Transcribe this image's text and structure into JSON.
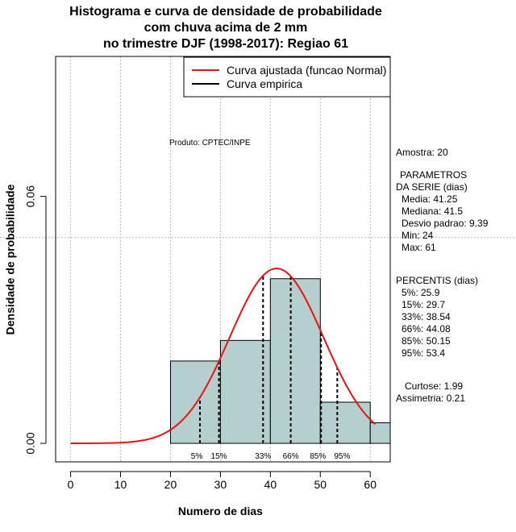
{
  "chart_data": {
    "type": "histogram",
    "title_lines": [
      "Histograma e curva de densidade de probabilidade",
      "com chuva acima de 2 mm",
      "no trimestre DJF (1998-2017): Regiao 61"
    ],
    "xlabel": "Numero de dias",
    "ylabel": "Densidade de probabilidade",
    "xlim": [
      -3,
      64
    ],
    "ylim": [
      -0.0045,
      0.094
    ],
    "x_ticks": [
      0,
      10,
      20,
      30,
      40,
      50,
      60
    ],
    "y_ticks": [
      0.0,
      0.06
    ],
    "y_tick_labels": [
      "0.00",
      "0.06"
    ],
    "grid_x": [
      0,
      10,
      20,
      30,
      40,
      50,
      60
    ],
    "grid_y": 0.05,
    "bins": [
      {
        "from": 20,
        "to": 30,
        "density": 0.02
      },
      {
        "from": 30,
        "to": 40,
        "density": 0.025
      },
      {
        "from": 40,
        "to": 50,
        "density": 0.04
      },
      {
        "from": 50,
        "to": 60,
        "density": 0.01
      },
      {
        "from": 60,
        "to": 64,
        "density": 0.005
      }
    ],
    "normal_fit": {
      "mean": 41.25,
      "sd": 9.39,
      "x_from": 0,
      "x_to": 61
    },
    "percentile_lines": [
      {
        "label": "5%",
        "x": 25.9
      },
      {
        "label": "15%",
        "x": 29.7
      },
      {
        "label": "33%",
        "x": 38.54
      },
      {
        "label": "66%",
        "x": 44.08
      },
      {
        "label": "85%",
        "x": 50.15
      },
      {
        "label": "95%",
        "x": 53.4
      }
    ],
    "legend": [
      {
        "label": "Curva ajustada (funcao Normal)",
        "color": "#ee1111"
      },
      {
        "label": "Curva empirica",
        "color": "#000000"
      }
    ],
    "product_note": "Produto: CPTEC/INPE"
  },
  "stats": {
    "amostra": "Amostra: 20",
    "params_header_1": "PARAMETROS",
    "params_header_2": "DA SERIE (dias)",
    "media": "Media: 41.25",
    "mediana": "Mediana: 41.5",
    "desvio": "Desvio padrao: 9.39",
    "min": "Min: 24",
    "max": "Max: 61",
    "percents_header": "PERCENTIS (dias)",
    "p5": "5%: 25.9",
    "p15": "15%: 29.7",
    "p33": "33%: 38.54",
    "p66": "66%: 44.08",
    "p85": "85%: 50.15",
    "p95": "95%: 53.4",
    "curtose": "Curtose: 1.99",
    "assimetria": "Assimetria: 0.21"
  },
  "colors": {
    "bar_fill": "#b4cfcd",
    "curve": "#ee1111",
    "grid": "#b8b8b8"
  }
}
